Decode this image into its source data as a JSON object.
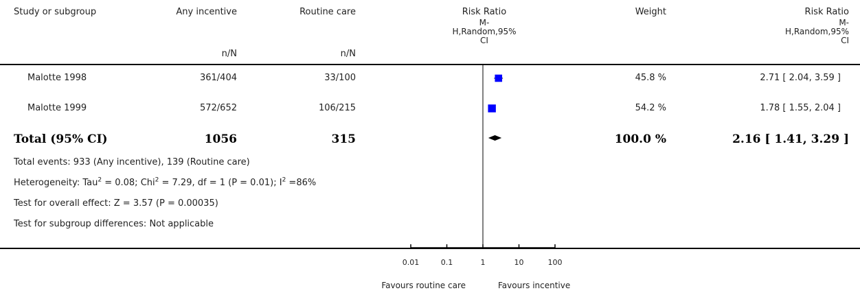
{
  "header": {
    "study_col": "Study or subgroup",
    "group1": "Any incentive",
    "group2": "Routine care",
    "group1_sub": "n/N",
    "group2_sub": "n/N",
    "plot_title": [
      "Risk Ratio",
      "M-",
      "H,Random,95%",
      "CI"
    ],
    "weight": "Weight",
    "effect_title": [
      "Risk Ratio",
      "M-",
      "H,Random,95%",
      "CI"
    ]
  },
  "studies": [
    {
      "name": "Malotte 1998",
      "g1": "361/404",
      "g2": "33/100",
      "weight": "45.8 %",
      "ci": "2.71 [ 2.04, 3.59 ]"
    },
    {
      "name": "Malotte 1999",
      "g1": "572/652",
      "g2": "106/215",
      "weight": "54.2 %",
      "ci": "1.78 [ 1.55, 2.04 ]"
    }
  ],
  "total": {
    "label": "Total (95% CI)",
    "g1": "1056",
    "g2": "315",
    "weight": "100.0 %",
    "ci": "2.16 [ 1.41, 3.29 ]"
  },
  "footnotes": {
    "events": "Total events: 933 (Any incentive), 139 (Routine care)",
    "heterogeneity_pre": "Heterogeneity: Tau",
    "heterogeneity_mid1": " = 0.08; Chi",
    "heterogeneity_mid2": " = 7.29, df = 1 (P = 0.01); I",
    "heterogeneity_post": " =86%",
    "sup2": "2",
    "overall": "Test for overall effect: Z = 3.57 (P = 0.00035)",
    "subgroup": "Test for subgroup differences: Not applicable"
  },
  "axis": {
    "ticks": [
      "0.01",
      "0.1",
      "1",
      "10",
      "100"
    ],
    "left_label": "Favours routine care",
    "right_label": "Favours incentive"
  },
  "colors": {
    "study_marker": "#0000ff",
    "total_marker": "#000000"
  },
  "chart_data": {
    "type": "scatter",
    "scale": "log",
    "xlim": [
      0.01,
      100
    ],
    "ticks": [
      0.01,
      0.1,
      1,
      10,
      100
    ],
    "reference_value": 1,
    "points": [
      {
        "label": "Malotte 1998",
        "estimate": 2.71,
        "lower": 2.04,
        "upper": 3.59,
        "weight_pct": 45.8
      },
      {
        "label": "Malotte 1999",
        "estimate": 1.78,
        "lower": 1.55,
        "upper": 2.04,
        "weight_pct": 54.2
      }
    ],
    "pooled": {
      "label": "Total (95% CI)",
      "estimate": 2.16,
      "lower": 1.41,
      "upper": 3.29
    }
  }
}
